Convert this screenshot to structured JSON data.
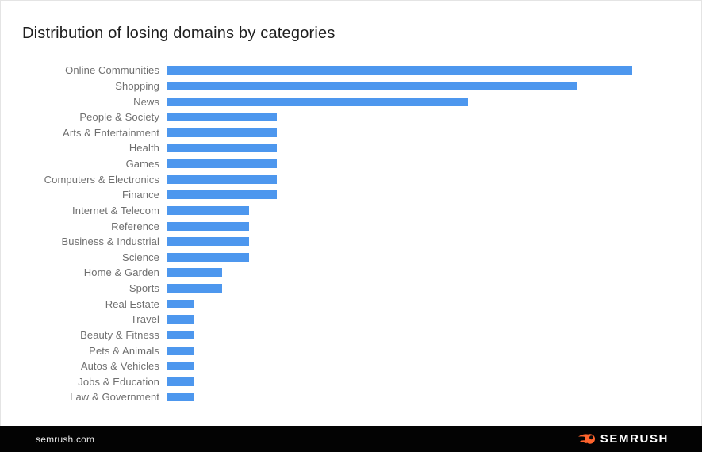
{
  "title": "Distribution of losing domains by categories",
  "footer": {
    "site_label": "semrush.com",
    "brand_name": "SEMRUSH"
  },
  "colors": {
    "bar": "#4d97ee",
    "label_text": "#6f6f6f",
    "title_text": "#1e1e1e",
    "footer_bg": "#030303",
    "footer_text": "#ededed",
    "brand_orange": "#ff642d",
    "background": "#ffffff"
  },
  "chart_data": {
    "type": "bar",
    "orientation": "horizontal",
    "title": "Distribution of losing domains by categories",
    "categories": [
      "Online Communities",
      "Shopping",
      "News",
      "People & Society",
      "Arts & Entertainment",
      "Health",
      "Games",
      "Computers & Electronics",
      "Finance",
      "Internet & Telecom",
      "Reference",
      "Business & Industrial",
      "Science",
      "Home & Garden",
      "Sports",
      "Real Estate",
      "Travel",
      "Beauty & Fitness",
      "Pets & Animals",
      "Autos & Vehicles",
      "Jobs & Education",
      "Law & Government"
    ],
    "values": [
      17,
      15,
      11,
      4,
      4,
      4,
      4,
      4,
      4,
      3,
      3,
      3,
      3,
      2,
      2,
      1,
      1,
      1,
      1,
      1,
      1,
      1
    ],
    "unit": "%",
    "xlim": [
      0,
      19
    ],
    "grid": false,
    "axis_ticks_visible": false,
    "value_labels_visible": false,
    "legend": "none",
    "bar_color": "#4d97ee"
  }
}
